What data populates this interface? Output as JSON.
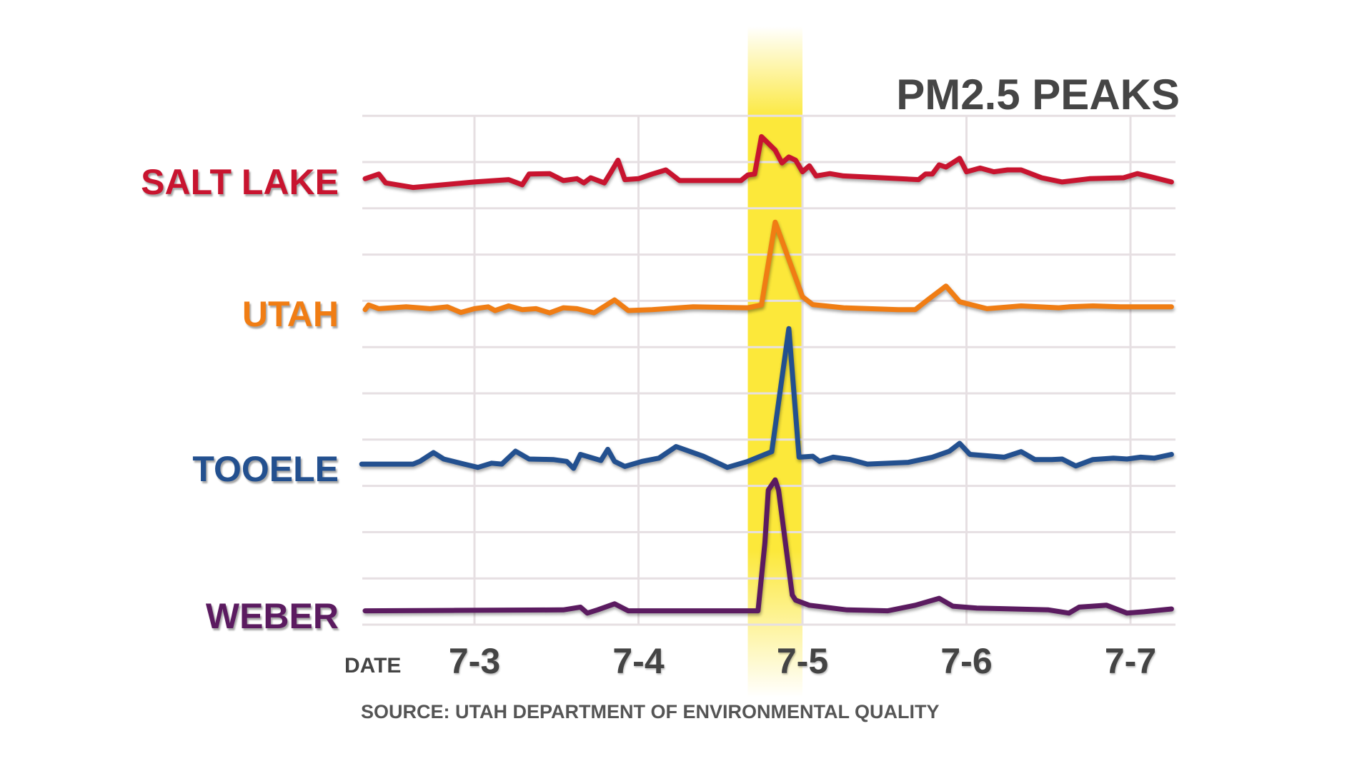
{
  "chart_data": {
    "type": "line",
    "title": "PM2.5 PEAKS",
    "xlabel": "DATE",
    "x_tick_labels": [
      "7-3",
      "7-4",
      "7-5",
      "7-6",
      "7-7"
    ],
    "xlim": [
      "7-2 07:00",
      "7-7 06:40"
    ],
    "ylim": [
      0,
      11
    ],
    "grid": true,
    "highlight": {
      "start": "7-4 16:00",
      "end": "7-5 00:00",
      "color": "#fce83a"
    },
    "source": "SOURCE: UTAH DEPARTMENT OF ENVIRONMENTAL QUALITY",
    "series": [
      {
        "name": "SALT LAKE",
        "color": "#c8142f",
        "points": [
          [
            "7-2 08:00",
            9.64
          ],
          [
            "7-2 10:00",
            9.74
          ],
          [
            "7-2 11:00",
            9.55
          ],
          [
            "7-2 15:00",
            9.45
          ],
          [
            "7-3 00:00",
            9.57
          ],
          [
            "7-3 05:00",
            9.62
          ],
          [
            "7-3 07:00",
            9.51
          ],
          [
            "7-3 08:00",
            9.74
          ],
          [
            "7-3 11:00",
            9.75
          ],
          [
            "7-3 13:00",
            9.6
          ],
          [
            "7-3 15:00",
            9.64
          ],
          [
            "7-3 16:00",
            9.55
          ],
          [
            "7-3 17:00",
            9.66
          ],
          [
            "7-3 19:00",
            9.55
          ],
          [
            "7-3 20:00",
            9.79
          ],
          [
            "7-3 21:00",
            10.04
          ],
          [
            "7-3 22:00",
            9.62
          ],
          [
            "7-4 00:00",
            9.64
          ],
          [
            "7-4 02:00",
            9.74
          ],
          [
            "7-4 04:00",
            9.83
          ],
          [
            "7-4 06:00",
            9.6
          ],
          [
            "7-4 15:00",
            9.6
          ],
          [
            "7-4 16:00",
            9.72
          ],
          [
            "7-4 17:00",
            9.74
          ],
          [
            "7-4 18:00",
            10.55
          ],
          [
            "7-4 20:00",
            10.26
          ],
          [
            "7-4 21:00",
            9.98
          ],
          [
            "7-4 22:00",
            10.11
          ],
          [
            "7-4 23:00",
            10.04
          ],
          [
            "7-5 00:00",
            9.79
          ],
          [
            "7-5 01:00",
            9.92
          ],
          [
            "7-5 02:00",
            9.7
          ],
          [
            "7-5 04:00",
            9.75
          ],
          [
            "7-5 06:00",
            9.7
          ],
          [
            "7-5 17:00",
            9.62
          ],
          [
            "7-5 18:00",
            9.74
          ],
          [
            "7-5 19:00",
            9.74
          ],
          [
            "7-5 20:00",
            9.94
          ],
          [
            "7-5 21:00",
            9.89
          ],
          [
            "7-5 23:00",
            10.08
          ],
          [
            "7-6 00:00",
            9.79
          ],
          [
            "7-6 02:00",
            9.87
          ],
          [
            "7-6 04:00",
            9.79
          ],
          [
            "7-6 06:00",
            9.83
          ],
          [
            "7-6 08:00",
            9.83
          ],
          [
            "7-6 11:00",
            9.66
          ],
          [
            "7-6 14:00",
            9.57
          ],
          [
            "7-6 18:00",
            9.64
          ],
          [
            "7-6 23:00",
            9.66
          ],
          [
            "7-7 01:00",
            9.75
          ],
          [
            "7-7 03:00",
            9.68
          ],
          [
            "7-7 06:00",
            9.57
          ]
        ]
      },
      {
        "name": "UTAH",
        "color": "#f07d14",
        "points": [
          [
            "7-2 08:00",
            6.81
          ],
          [
            "7-2 08:30",
            6.91
          ],
          [
            "7-2 10:00",
            6.83
          ],
          [
            "7-2 14:00",
            6.87
          ],
          [
            "7-2 17:30",
            6.83
          ],
          [
            "7-2 20:00",
            6.87
          ],
          [
            "7-2 22:00",
            6.75
          ],
          [
            "7-3 00:00",
            6.83
          ],
          [
            "7-3 02:00",
            6.87
          ],
          [
            "7-3 03:00",
            6.79
          ],
          [
            "7-3 05:00",
            6.89
          ],
          [
            "7-3 07:00",
            6.81
          ],
          [
            "7-3 09:00",
            6.83
          ],
          [
            "7-3 11:00",
            6.74
          ],
          [
            "7-3 13:00",
            6.85
          ],
          [
            "7-3 15:00",
            6.83
          ],
          [
            "7-3 17:30",
            6.74
          ],
          [
            "7-3 20:30",
            7.02
          ],
          [
            "7-3 22:30",
            6.79
          ],
          [
            "7-4 02:00",
            6.81
          ],
          [
            "7-4 08:00",
            6.87
          ],
          [
            "7-4 16:00",
            6.85
          ],
          [
            "7-4 18:00",
            6.91
          ],
          [
            "7-4 20:00",
            8.7
          ],
          [
            "7-5 00:00",
            7.09
          ],
          [
            "7-5 01:30",
            6.92
          ],
          [
            "7-5 06:00",
            6.85
          ],
          [
            "7-5 14:00",
            6.81
          ],
          [
            "7-5 16:30",
            6.81
          ],
          [
            "7-5 18:30",
            7.04
          ],
          [
            "7-5 21:00",
            7.32
          ],
          [
            "7-5 23:00",
            6.98
          ],
          [
            "7-6 03:00",
            6.83
          ],
          [
            "7-6 08:00",
            6.89
          ],
          [
            "7-6 13:30",
            6.85
          ],
          [
            "7-6 15:00",
            6.87
          ],
          [
            "7-6 18:30",
            6.89
          ],
          [
            "7-6 22:30",
            6.87
          ],
          [
            "7-7 06:00",
            6.87
          ]
        ]
      },
      {
        "name": "TOOELE",
        "color": "#23508f",
        "points": [
          [
            "7-2 07:30",
            3.47
          ],
          [
            "7-2 15:00",
            3.47
          ],
          [
            "7-2 16:00",
            3.53
          ],
          [
            "7-2 18:00",
            3.72
          ],
          [
            "7-2 19:30",
            3.58
          ],
          [
            "7-2 22:30",
            3.47
          ],
          [
            "7-3 00:30",
            3.4
          ],
          [
            "7-3 02:30",
            3.49
          ],
          [
            "7-3 04:00",
            3.47
          ],
          [
            "7-3 06:00",
            3.75
          ],
          [
            "7-3 08:00",
            3.58
          ],
          [
            "7-3 11:30",
            3.57
          ],
          [
            "7-3 13:30",
            3.53
          ],
          [
            "7-3 14:30",
            3.38
          ],
          [
            "7-3 15:30",
            3.68
          ],
          [
            "7-3 18:30",
            3.55
          ],
          [
            "7-3 19:30",
            3.79
          ],
          [
            "7-3 20:30",
            3.53
          ],
          [
            "7-3 22:00",
            3.42
          ],
          [
            "7-4 00:30",
            3.53
          ],
          [
            "7-4 03:00",
            3.6
          ],
          [
            "7-4 05:30",
            3.85
          ],
          [
            "7-4 09:30",
            3.64
          ],
          [
            "7-4 13:00",
            3.4
          ],
          [
            "7-4 16:00",
            3.53
          ],
          [
            "7-4 19:30",
            3.74
          ],
          [
            "7-4 22:00",
            6.4
          ],
          [
            "7-4 23:30",
            3.62
          ],
          [
            "7-5 01:30",
            3.64
          ],
          [
            "7-5 02:30",
            3.53
          ],
          [
            "7-5 04:30",
            3.62
          ],
          [
            "7-5 07:00",
            3.57
          ],
          [
            "7-5 09:30",
            3.47
          ],
          [
            "7-5 15:30",
            3.51
          ],
          [
            "7-5 19:00",
            3.62
          ],
          [
            "7-5 21:30",
            3.75
          ],
          [
            "7-5 23:00",
            3.92
          ],
          [
            "7-6 00:30",
            3.68
          ],
          [
            "7-6 05:30",
            3.62
          ],
          [
            "7-6 08:00",
            3.74
          ],
          [
            "7-6 10:00",
            3.57
          ],
          [
            "7-6 12:30",
            3.57
          ],
          [
            "7-6 14:00",
            3.58
          ],
          [
            "7-6 16:00",
            3.43
          ],
          [
            "7-6 18:30",
            3.57
          ],
          [
            "7-6 21:30",
            3.6
          ],
          [
            "7-6 23:30",
            3.58
          ],
          [
            "7-7 01:30",
            3.62
          ],
          [
            "7-7 03:30",
            3.6
          ],
          [
            "7-7 06:00",
            3.68
          ]
        ]
      },
      {
        "name": "WEBER",
        "color": "#5b1b60",
        "points": [
          [
            "7-2 08:00",
            0.3
          ],
          [
            "7-3 13:00",
            0.32
          ],
          [
            "7-3 15:30",
            0.38
          ],
          [
            "7-3 16:30",
            0.25
          ],
          [
            "7-3 18:00",
            0.32
          ],
          [
            "7-3 20:30",
            0.45
          ],
          [
            "7-3 22:30",
            0.3
          ],
          [
            "7-4 17:30",
            0.3
          ],
          [
            "7-4 18:30",
            1.77
          ],
          [
            "7-4 19:00",
            2.91
          ],
          [
            "7-4 20:00",
            3.13
          ],
          [
            "7-4 20:30",
            2.91
          ],
          [
            "7-4 21:30",
            1.77
          ],
          [
            "7-4 22:30",
            0.64
          ],
          [
            "7-4 23:00",
            0.53
          ],
          [
            "7-5 01:00",
            0.42
          ],
          [
            "7-5 06:30",
            0.32
          ],
          [
            "7-5 12:30",
            0.3
          ],
          [
            "7-5 16:30",
            0.42
          ],
          [
            "7-5 20:00",
            0.57
          ],
          [
            "7-5 22:00",
            0.4
          ],
          [
            "7-6 01:30",
            0.36
          ],
          [
            "7-6 12:00",
            0.32
          ],
          [
            "7-6 15:00",
            0.25
          ],
          [
            "7-6 16:30",
            0.38
          ],
          [
            "7-6 20:30",
            0.42
          ],
          [
            "7-6 23:30",
            0.25
          ],
          [
            "7-7 02:00",
            0.28
          ],
          [
            "7-7 06:00",
            0.34
          ]
        ]
      }
    ]
  }
}
